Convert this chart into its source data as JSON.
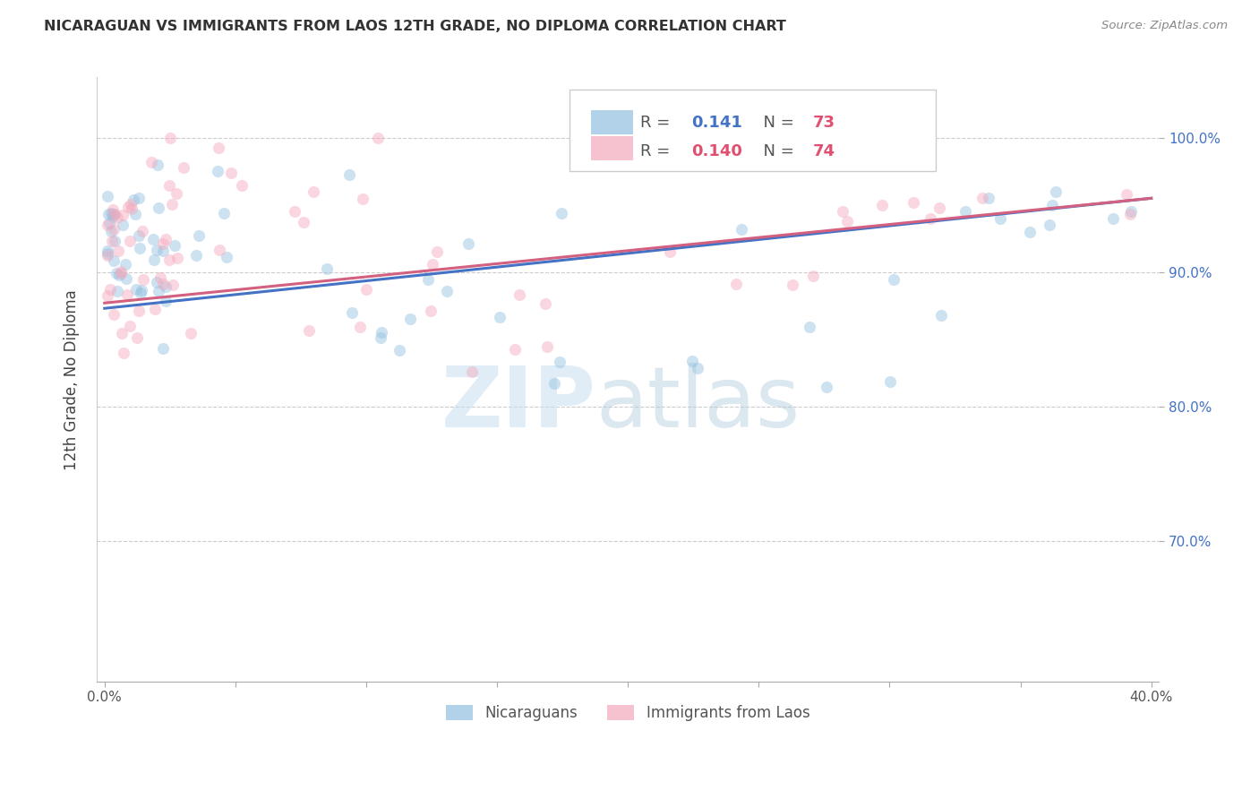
{
  "title": "NICARAGUAN VS IMMIGRANTS FROM LAOS 12TH GRADE, NO DIPLOMA CORRELATION CHART",
  "source": "Source: ZipAtlas.com",
  "ylabel": "12th Grade, No Diploma",
  "xlim": [
    -0.003,
    0.403
  ],
  "ylim": [
    0.595,
    1.045
  ],
  "xtick_vals": [
    0.0,
    0.05,
    0.1,
    0.15,
    0.2,
    0.25,
    0.3,
    0.35,
    0.4
  ],
  "xtick_labeled": [
    0.0,
    0.4
  ],
  "xtick_label_map": {
    "0.0": "0.0%",
    "0.4": "40.0%"
  },
  "ytick_vals": [
    0.7,
    0.8,
    0.9,
    1.0
  ],
  "ytick_labels": [
    "70.0%",
    "80.0%",
    "90.0%",
    "100.0%"
  ],
  "legend_r1": "R =",
  "legend_v1": "0.141",
  "legend_n1": "N =",
  "legend_nv1": "73",
  "legend_r2": "R =",
  "legend_v2": "0.140",
  "legend_n2": "N =",
  "legend_nv2": "74",
  "legend_label_nicaraguans": "Nicaraguans",
  "legend_label_laos": "Immigrants from Laos",
  "blue_color": "#92c0e0",
  "pink_color": "#f4a8bc",
  "blue_line_color": "#4472c4",
  "pink_line_color": "#d46080",
  "blue_line_x": [
    0.0,
    0.4
  ],
  "blue_line_y": [
    0.873,
    0.955
  ],
  "pink_line_x": [
    0.0,
    0.4
  ],
  "pink_line_y": [
    0.877,
    0.955
  ],
  "background_color": "#ffffff",
  "grid_color": "#cccccc",
  "marker_size": 90,
  "marker_alpha": 0.45,
  "zip_color": "#c8dff0",
  "atlas_color": "#b0ccdc"
}
